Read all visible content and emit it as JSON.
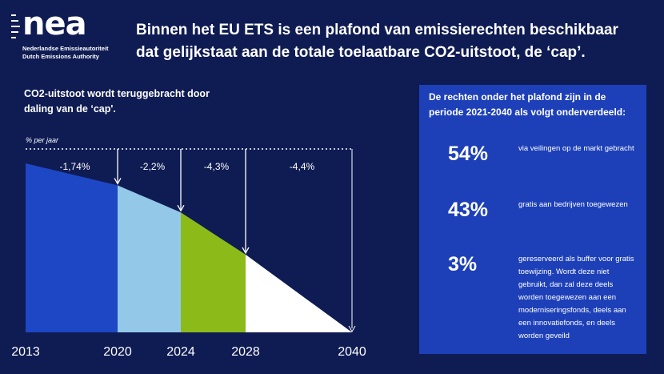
{
  "logo": {
    "name": "nea",
    "line1": "Nederlandse Emissieautoriteit",
    "line2": "Dutch Emissions Authority"
  },
  "headline": "Binnen het EU ETS is een plafond van emissierechten beschikbaar dat gelijkstaat aan de totale toelaatbare CO2-uitstoot, de ‘cap’.",
  "chart_title": "CO2-uitstoot wordt teruggebracht door daling van de ‘cap'.",
  "chart_data": {
    "type": "area",
    "ylabel": "% per jaar",
    "x_tick_labels": [
      "2013",
      "2020",
      "2024",
      "2028",
      "2040"
    ],
    "periods": [
      {
        "from": 2013,
        "to": 2020,
        "rate_label": "-1,74%",
        "color": "#1e47c5"
      },
      {
        "from": 2020,
        "to": 2024,
        "rate_label": "-2,2%",
        "color": "#93c8e8"
      },
      {
        "from": 2024,
        "to": 2028,
        "rate_label": "-4,3%",
        "color": "#8cbb19"
      },
      {
        "from": 2028,
        "to": 2040,
        "rate_label": "-4,4%",
        "color": "#ffffff"
      }
    ],
    "cap_index": [
      {
        "x": 2013,
        "y": 100
      },
      {
        "x": 2020,
        "y": 87
      },
      {
        "x": 2024,
        "y": 71
      },
      {
        "x": 2028,
        "y": 46
      },
      {
        "x": 2040,
        "y": 0
      }
    ],
    "ylim": [
      0,
      100
    ],
    "grid": false
  },
  "panel": {
    "title": "De rechten onder het plafond zijn in de periode 2021-2040 als volgt onderverdeeld:",
    "items": [
      {
        "pct": "54%",
        "desc": "via veilingen op de markt gebracht"
      },
      {
        "pct": "43%",
        "desc": "gratis aan bedrijven toegewezen"
      },
      {
        "pct": "3%",
        "desc": "gereserveerd als buffer voor gratis toewijzing. Wordt deze niet gebruikt, dan zal deze deels worden toegewezen aan een moderniseringsfonds, deels aan een innovatiefonds, en deels worden geveild"
      }
    ],
    "color": "#1d40b8"
  },
  "colors": {
    "background": "#0f1c53",
    "text": "#ffffff"
  }
}
